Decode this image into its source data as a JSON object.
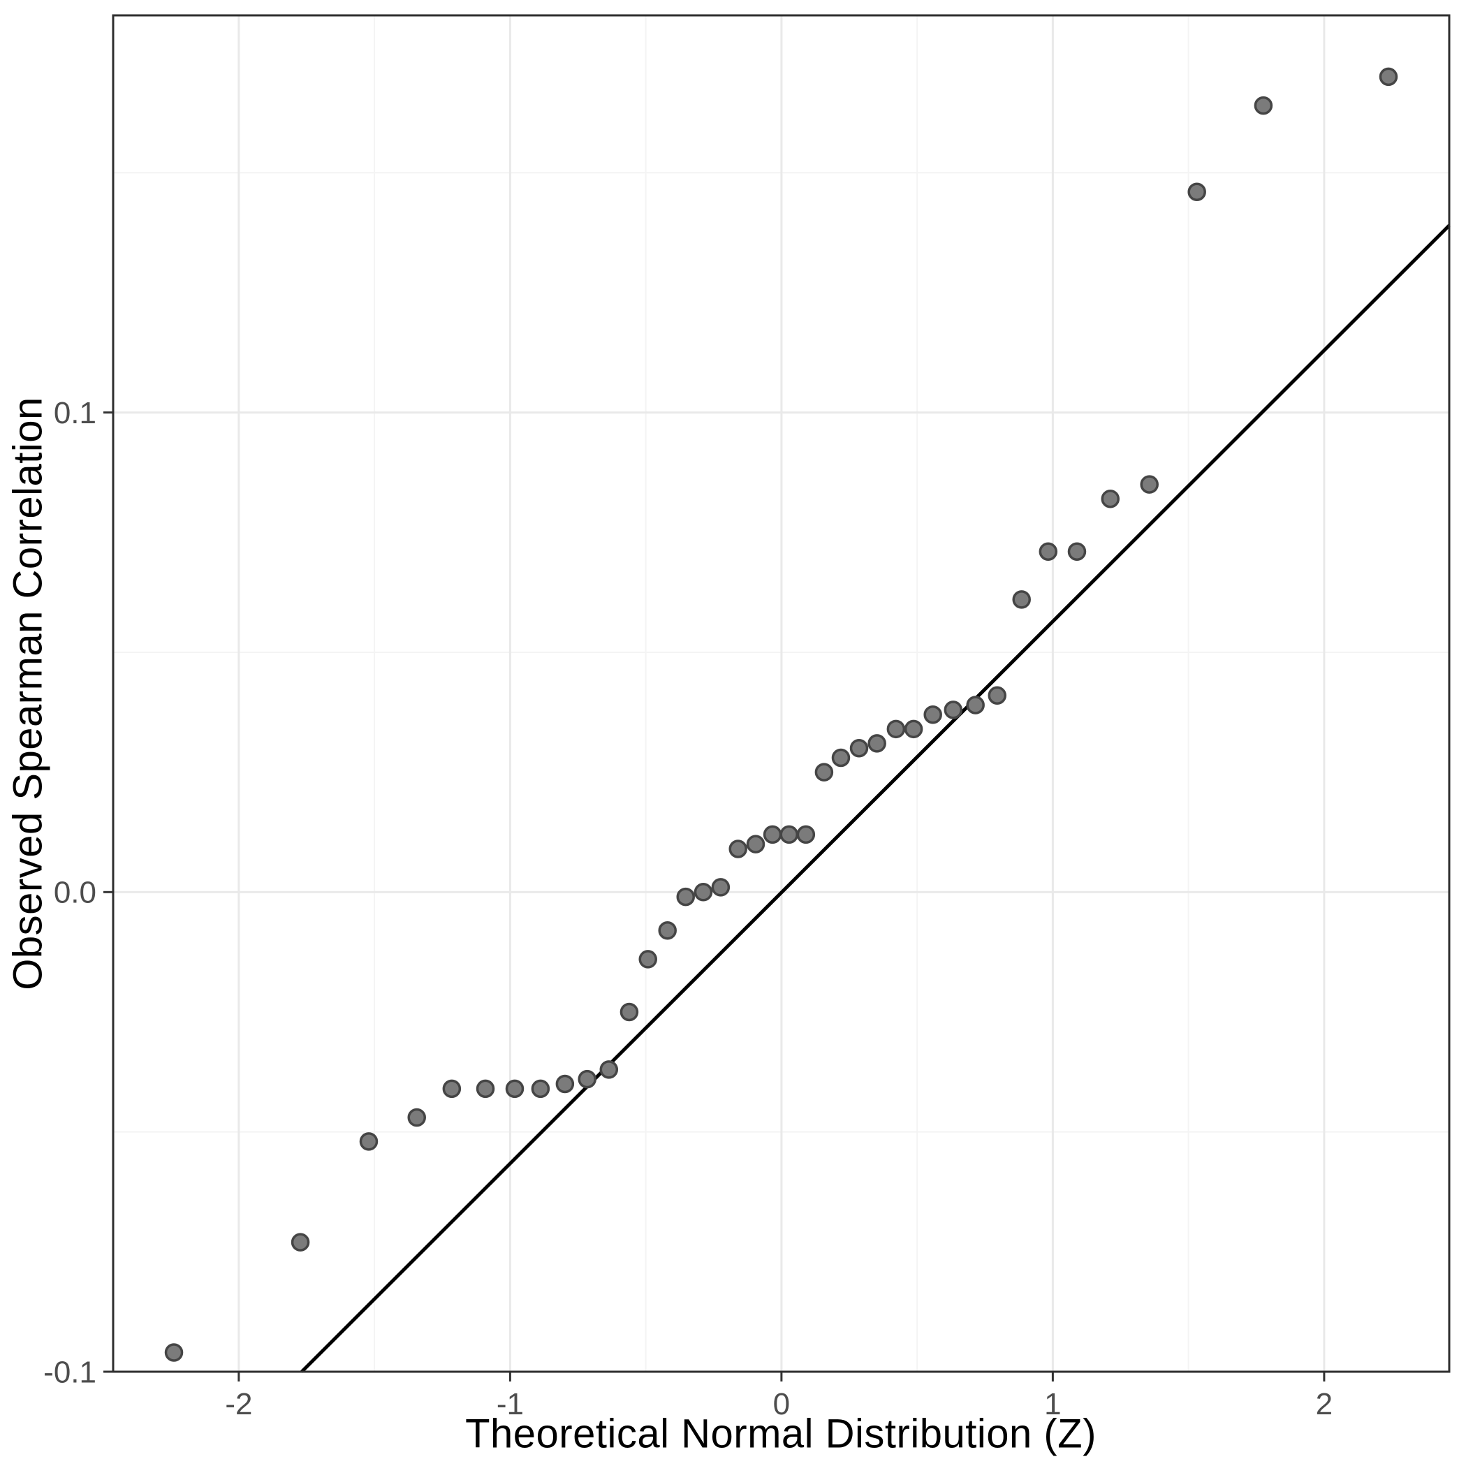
{
  "figure": {
    "background": "#ffffff"
  },
  "chart_data": {
    "type": "scatter",
    "title": "",
    "xlabel": "Theoretical Normal Distribution (Z)",
    "ylabel": "Observed Spearman Correlation",
    "xlim": [
      -2.463,
      2.461
    ],
    "ylim": [
      -0.1,
      0.1828
    ],
    "grid": "on",
    "legend": "none",
    "x_major_ticks": [
      -2,
      -1,
      0,
      1,
      2
    ],
    "x_major_labels": [
      "-2",
      "-1",
      "0",
      "1",
      "2"
    ],
    "x_minor_ticks": [
      -1.5,
      -0.5,
      0.5,
      1.5
    ],
    "y_major_ticks": [
      0.1,
      0.0,
      -0.1
    ],
    "y_major_labels": [
      "0.1",
      "0.0",
      "-0.1"
    ],
    "y_minor_ticks": [
      0.15,
      0.05,
      -0.05
    ],
    "reference_line": {
      "x1": -1.768,
      "y1": -0.1,
      "x2": 2.461,
      "y2": 0.139
    },
    "points": [
      [
        -2.239,
        -0.096
      ],
      [
        -1.773,
        -0.073
      ],
      [
        -1.521,
        -0.052
      ],
      [
        -1.344,
        -0.047
      ],
      [
        -1.215,
        -0.041
      ],
      [
        -1.091,
        -0.041
      ],
      [
        -0.983,
        -0.041
      ],
      [
        -0.888,
        -0.041
      ],
      [
        -0.798,
        -0.04
      ],
      [
        -0.716,
        -0.039
      ],
      [
        -0.636,
        -0.037
      ],
      [
        -0.561,
        -0.025
      ],
      [
        -0.492,
        -0.014
      ],
      [
        -0.42,
        -0.008
      ],
      [
        -0.353,
        -0.001
      ],
      [
        -0.288,
        0.0
      ],
      [
        -0.224,
        0.001
      ],
      [
        -0.16,
        0.009
      ],
      [
        -0.095,
        0.01
      ],
      [
        -0.033,
        0.012
      ],
      [
        0.028,
        0.012
      ],
      [
        0.09,
        0.012
      ],
      [
        0.157,
        0.025
      ],
      [
        0.219,
        0.028
      ],
      [
        0.286,
        0.03
      ],
      [
        0.352,
        0.031
      ],
      [
        0.422,
        0.034
      ],
      [
        0.487,
        0.034
      ],
      [
        0.558,
        0.037
      ],
      [
        0.633,
        0.038
      ],
      [
        0.715,
        0.039
      ],
      [
        0.795,
        0.041
      ],
      [
        0.885,
        0.061
      ],
      [
        0.983,
        0.071
      ],
      [
        1.089,
        0.071
      ],
      [
        1.212,
        0.082
      ],
      [
        1.356,
        0.085
      ],
      [
        1.531,
        0.146
      ],
      [
        1.776,
        0.164
      ],
      [
        2.237,
        0.17
      ]
    ]
  },
  "style": {
    "background": "#ffffff",
    "panel_border": "#2e2e2e",
    "grid_major": "#e9e9e9",
    "grid_minor": "#f4f4f4",
    "tick_color": "#333333",
    "tick_label_color": "#4d4d4d",
    "axis_title_color": "#000000",
    "point_fill": "#7b7b7b",
    "point_stroke": "#454545",
    "reference_line_color": "#000000"
  }
}
